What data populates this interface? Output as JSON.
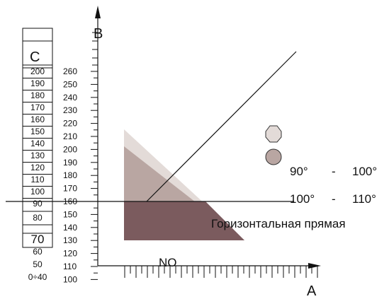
{
  "axes": {
    "x_label": "A",
    "y_label": "B",
    "x_marker": "NO"
  },
  "left_scale": {
    "label": "C",
    "values": [
      "200",
      "190",
      "180",
      "170",
      "160",
      "150",
      "140",
      "130",
      "120",
      "110",
      "100",
      "90",
      "80",
      "70",
      "60",
      "50",
      "0÷40"
    ]
  },
  "y_ticks": [
    "260",
    "250",
    "240",
    "230",
    "220",
    "210",
    "200",
    "190",
    "180",
    "170",
    "160",
    "150",
    "140",
    "130",
    "120",
    "110",
    "100"
  ],
  "legend": {
    "light": {
      "text": "90°",
      "dash": "-",
      "text2": "100°"
    },
    "dark": {
      "text": "100°",
      "dash": "-",
      "text2": "110°"
    },
    "horizontal_line": "Горизонтальная прямая"
  },
  "colors": {
    "light_region": "#e3dbd8",
    "medium_region": "#b9a6a2",
    "dark_region": "#7b5b5e",
    "light_marker": "#e3dbd8",
    "dark_marker": "#b9a6a2",
    "ink": "#111111"
  }
}
